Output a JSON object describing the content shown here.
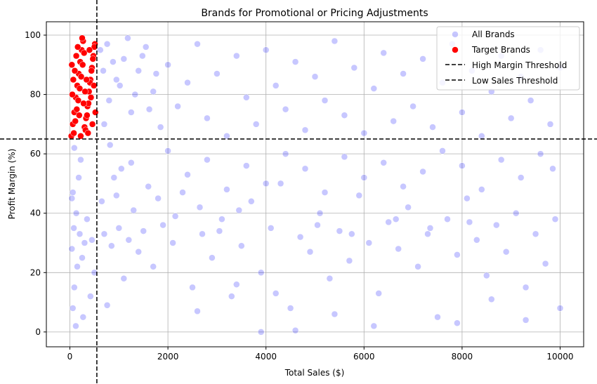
{
  "chart_data": {
    "type": "scatter",
    "title": "Brands for Promotional or Pricing Adjustments",
    "xlabel": "Total Sales ($)",
    "ylabel": "Profit Margin (%)",
    "xlim": [
      -480,
      10480
    ],
    "ylim": [
      -5,
      104.5
    ],
    "xticks": [
      0,
      2000,
      4000,
      6000,
      8000,
      10000
    ],
    "yticks": [
      0,
      20,
      40,
      60,
      80,
      100
    ],
    "grid": true,
    "legend_position": "top-right",
    "series": [
      {
        "name": "All Brands",
        "color": "#0000ff",
        "opacity": 0.22,
        "points": [
          [
            120,
            2
          ],
          [
            60,
            8
          ],
          [
            90,
            15
          ],
          [
            150,
            22
          ],
          [
            40,
            28
          ],
          [
            200,
            33
          ],
          [
            80,
            35
          ],
          [
            300,
            30
          ],
          [
            450,
            31
          ],
          [
            250,
            25
          ],
          [
            130,
            40
          ],
          [
            60,
            47
          ],
          [
            180,
            52
          ],
          [
            220,
            58
          ],
          [
            90,
            62
          ],
          [
            40,
            45
          ],
          [
            350,
            38
          ],
          [
            500,
            20
          ],
          [
            420,
            12
          ],
          [
            270,
            5
          ],
          [
            700,
            33
          ],
          [
            850,
            29
          ],
          [
            1000,
            35
          ],
          [
            1200,
            31
          ],
          [
            1400,
            27
          ],
          [
            650,
            44
          ],
          [
            900,
            52
          ],
          [
            1100,
            18
          ],
          [
            760,
            9
          ],
          [
            1300,
            41
          ],
          [
            1500,
            34
          ],
          [
            1700,
            22
          ],
          [
            1900,
            36
          ],
          [
            2100,
            30
          ],
          [
            2300,
            47
          ],
          [
            2500,
            15
          ],
          [
            2700,
            33
          ],
          [
            2900,
            25
          ],
          [
            3100,
            38
          ],
          [
            3300,
            12
          ],
          [
            3500,
            29
          ],
          [
            3700,
            44
          ],
          [
            3900,
            20
          ],
          [
            4100,
            35
          ],
          [
            4300,
            50
          ],
          [
            4500,
            8
          ],
          [
            4700,
            32
          ],
          [
            4900,
            27
          ],
          [
            5100,
            40
          ],
          [
            5300,
            18
          ],
          [
            5500,
            34
          ],
          [
            5700,
            24
          ],
          [
            5900,
            46
          ],
          [
            6100,
            30
          ],
          [
            6300,
            13
          ],
          [
            6500,
            37
          ],
          [
            6700,
            28
          ],
          [
            6900,
            42
          ],
          [
            7100,
            22
          ],
          [
            7300,
            33
          ],
          [
            7500,
            5
          ],
          [
            7700,
            38
          ],
          [
            7900,
            26
          ],
          [
            8100,
            45
          ],
          [
            8300,
            31
          ],
          [
            8500,
            19
          ],
          [
            8700,
            36
          ],
          [
            8900,
            27
          ],
          [
            9100,
            40
          ],
          [
            9300,
            15
          ],
          [
            9500,
            33
          ],
          [
            9700,
            23
          ],
          [
            9900,
            38
          ],
          [
            10000,
            8
          ],
          [
            9850,
            55
          ],
          [
            9600,
            60
          ],
          [
            9200,
            52
          ],
          [
            8800,
            58
          ],
          [
            8400,
            48
          ],
          [
            8000,
            56
          ],
          [
            7600,
            61
          ],
          [
            7200,
            54
          ],
          [
            6800,
            49
          ],
          [
            6400,
            57
          ],
          [
            6000,
            52
          ],
          [
            5600,
            59
          ],
          [
            5200,
            47
          ],
          [
            4800,
            55
          ],
          [
            4400,
            60
          ],
          [
            4000,
            50
          ],
          [
            3600,
            56
          ],
          [
            3200,
            48
          ],
          [
            2800,
            58
          ],
          [
            2400,
            53
          ],
          [
            2000,
            61
          ],
          [
            1600,
            49
          ],
          [
            1250,
            57
          ],
          [
            950,
            46
          ],
          [
            820,
            63
          ],
          [
            1050,
            55
          ],
          [
            700,
            70
          ],
          [
            800,
            78
          ],
          [
            950,
            85
          ],
          [
            1100,
            92
          ],
          [
            1250,
            74
          ],
          [
            1400,
            88
          ],
          [
            1550,
            96
          ],
          [
            1700,
            81
          ],
          [
            1850,
            69
          ],
          [
            2000,
            90
          ],
          [
            2200,
            76
          ],
          [
            2400,
            84
          ],
          [
            2600,
            97
          ],
          [
            2800,
            72
          ],
          [
            3000,
            87
          ],
          [
            3200,
            66
          ],
          [
            3400,
            93
          ],
          [
            3600,
            79
          ],
          [
            3800,
            70
          ],
          [
            4000,
            95
          ],
          [
            4200,
            83
          ],
          [
            4400,
            75
          ],
          [
            4600,
            91
          ],
          [
            4800,
            68
          ],
          [
            5000,
            86
          ],
          [
            5200,
            78
          ],
          [
            5400,
            98
          ],
          [
            5600,
            73
          ],
          [
            5800,
            89
          ],
          [
            6000,
            67
          ],
          [
            6200,
            82
          ],
          [
            6400,
            94
          ],
          [
            6600,
            71
          ],
          [
            6800,
            87
          ],
          [
            7000,
            76
          ],
          [
            7200,
            92
          ],
          [
            7400,
            69
          ],
          [
            7600,
            84
          ],
          [
            7800,
            97
          ],
          [
            8000,
            74
          ],
          [
            8200,
            88
          ],
          [
            8400,
            66
          ],
          [
            8600,
            81
          ],
          [
            8800,
            93
          ],
          [
            9000,
            72
          ],
          [
            9200,
            86
          ],
          [
            9400,
            78
          ],
          [
            9600,
            95
          ],
          [
            9800,
            70
          ],
          [
            10000,
            89
          ],
          [
            620,
            95
          ],
          [
            680,
            88
          ],
          [
            760,
            97
          ],
          [
            880,
            91
          ],
          [
            1020,
            83
          ],
          [
            1180,
            99
          ],
          [
            1330,
            80
          ],
          [
            1480,
            93
          ],
          [
            1620,
            75
          ],
          [
            1760,
            87
          ],
          [
            3900,
            0
          ],
          [
            4600,
            0.5
          ],
          [
            7900,
            3
          ],
          [
            6200,
            2
          ],
          [
            2600,
            7
          ],
          [
            8600,
            11
          ],
          [
            5400,
            6
          ],
          [
            3400,
            16
          ],
          [
            9300,
            4
          ],
          [
            4200,
            13
          ],
          [
            1800,
            45
          ],
          [
            2150,
            39
          ],
          [
            2650,
            42
          ],
          [
            3050,
            34
          ],
          [
            3450,
            41
          ],
          [
            5050,
            36
          ],
          [
            5750,
            33
          ],
          [
            6650,
            38
          ],
          [
            7350,
            35
          ],
          [
            8150,
            37
          ]
        ]
      },
      {
        "name": "Target Brands",
        "color": "#ff0000",
        "opacity": 1,
        "points": [
          [
            30,
            66
          ],
          [
            60,
            70
          ],
          [
            90,
            74
          ],
          [
            120,
            79
          ],
          [
            150,
            83
          ],
          [
            180,
            87
          ],
          [
            210,
            91
          ],
          [
            240,
            95
          ],
          [
            270,
            98
          ],
          [
            300,
            69
          ],
          [
            330,
            72
          ],
          [
            360,
            76
          ],
          [
            390,
            81
          ],
          [
            420,
            85
          ],
          [
            450,
            89
          ],
          [
            480,
            93
          ],
          [
            510,
            97
          ],
          [
            80,
            67
          ],
          [
            110,
            71
          ],
          [
            140,
            75
          ],
          [
            170,
            78
          ],
          [
            200,
            82
          ],
          [
            230,
            86
          ],
          [
            260,
            90
          ],
          [
            290,
            94
          ],
          [
            320,
            68
          ],
          [
            350,
            73
          ],
          [
            380,
            77
          ],
          [
            410,
            84
          ],
          [
            440,
            88
          ],
          [
            470,
            92
          ],
          [
            500,
            96
          ],
          [
            50,
            80
          ],
          [
            100,
            88
          ],
          [
            160,
            96
          ],
          [
            220,
            66
          ],
          [
            280,
            77
          ],
          [
            340,
            85
          ],
          [
            400,
            95
          ],
          [
            460,
            70
          ],
          [
            520,
            74
          ],
          [
            40,
            90
          ],
          [
            130,
            93
          ],
          [
            250,
            99
          ],
          [
            370,
            67
          ],
          [
            430,
            79
          ],
          [
            490,
            83
          ],
          [
            190,
            73
          ],
          [
            310,
            81
          ],
          [
            70,
            85
          ]
        ]
      }
    ],
    "lines": [
      {
        "name": "High Margin Threshold",
        "orientation": "horizontal",
        "value": 65,
        "color": "#000000",
        "style": "dashed"
      },
      {
        "name": "Low Sales Threshold",
        "orientation": "vertical",
        "value": 550,
        "color": "#000000",
        "style": "dashed"
      }
    ]
  }
}
